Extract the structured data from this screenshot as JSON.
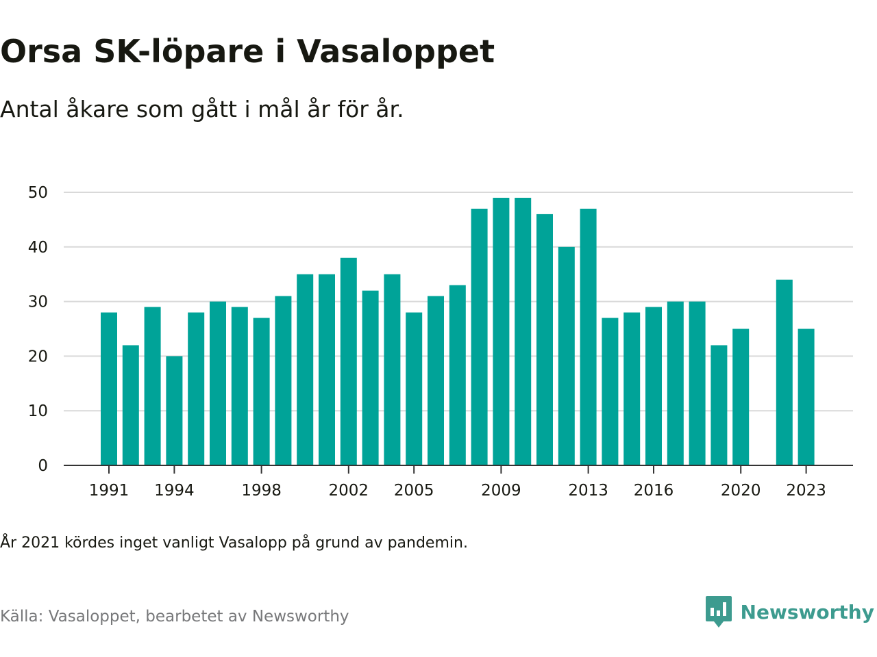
{
  "header": {
    "title": "Orsa SK-löpare i Vasaloppet",
    "subtitle": "Antal åkare som gått i mål år för år."
  },
  "footer": {
    "note": "År 2021 kördes inget vanligt Vasalopp på grund av pandemin.",
    "source": "Källa: Vasaloppet, bearbetet av Newsworthy",
    "brand": "Newsworthy"
  },
  "colors": {
    "bar": "#00a398",
    "brand": "#3d9b8f",
    "grid": "#d9d9d9",
    "axis": "#333333",
    "text": "#171811"
  },
  "icons": {
    "brand_logo": "newsworthy-logo-icon"
  },
  "chart_data": {
    "type": "bar",
    "categories": [
      1991,
      1992,
      1993,
      1994,
      1995,
      1996,
      1997,
      1998,
      1999,
      2000,
      2001,
      2002,
      2003,
      2004,
      2005,
      2006,
      2007,
      2008,
      2009,
      2010,
      2011,
      2012,
      2013,
      2014,
      2015,
      2016,
      2017,
      2018,
      2019,
      2020,
      2021,
      2022,
      2023
    ],
    "values": [
      28,
      22,
      29,
      20,
      28,
      30,
      29,
      27,
      31,
      35,
      35,
      38,
      32,
      35,
      28,
      31,
      33,
      47,
      49,
      49,
      46,
      40,
      47,
      27,
      28,
      29,
      30,
      30,
      22,
      25,
      null,
      34,
      25
    ],
    "x_tick_labels": [
      "1991",
      "1994",
      "1998",
      "2002",
      "2005",
      "2009",
      "2013",
      "2016",
      "2020",
      "2023"
    ],
    "y_ticks": [
      0,
      10,
      20,
      30,
      40,
      50
    ],
    "ylim": [
      0,
      50
    ],
    "xlabel": "",
    "ylabel": "",
    "grid": true,
    "legend": "none"
  }
}
